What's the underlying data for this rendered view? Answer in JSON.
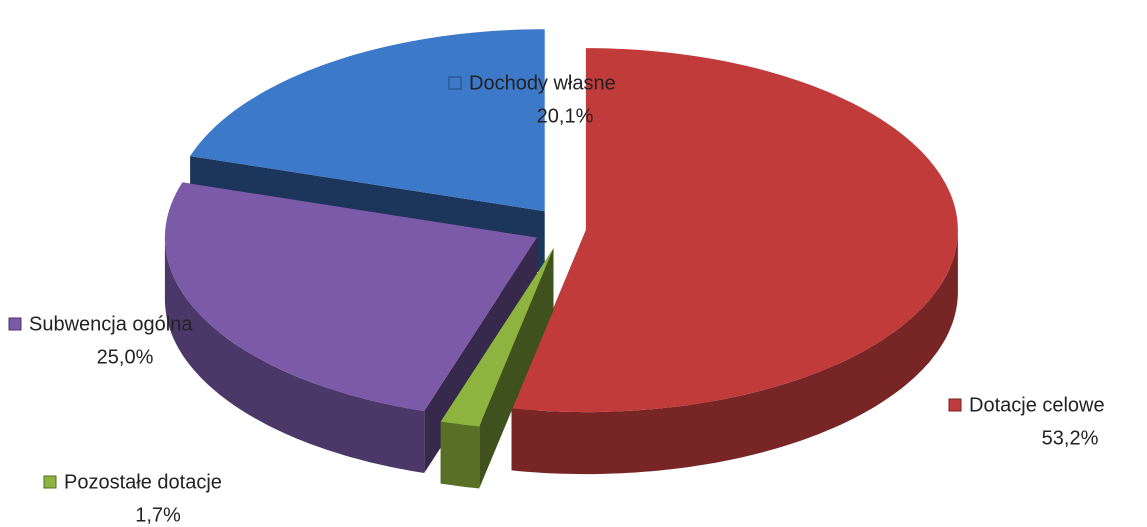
{
  "chart_data": {
    "type": "pie",
    "categories": [
      "Dotacje celowe",
      "Pozostałe dotacje",
      "Subwencja ogólna",
      "Dochody własne"
    ],
    "values": [
      53.2,
      1.7,
      25.0,
      20.1
    ],
    "value_labels": [
      "53,2%",
      "1,7%",
      "25,0%",
      "20,1%"
    ],
    "colors": [
      "#c23b3b",
      "#8db43e",
      "#7b5aa8",
      "#3d79c9"
    ]
  }
}
